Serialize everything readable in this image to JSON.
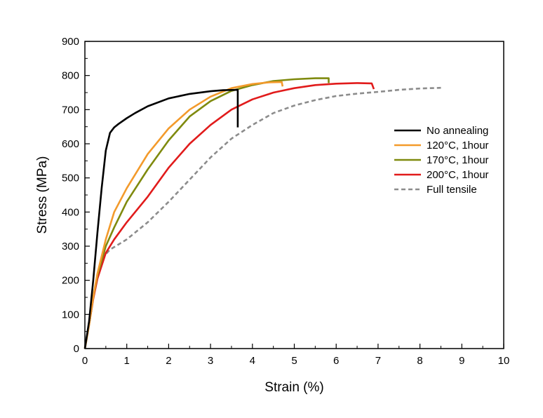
{
  "chart_data": {
    "type": "line",
    "title": "",
    "xlabel": "Strain (%)",
    "ylabel": "Stress (MPa)",
    "xlim": [
      0,
      10
    ],
    "ylim": [
      0,
      900
    ],
    "x_ticks": [
      "0",
      "1",
      "2",
      "3",
      "4",
      "5",
      "6",
      "7",
      "8",
      "9",
      "10"
    ],
    "y_ticks": [
      "0",
      "100",
      "200",
      "300",
      "400",
      "500",
      "600",
      "700",
      "800",
      "900"
    ],
    "grid": false,
    "legend_position": "right",
    "series": [
      {
        "name": "No annealing",
        "color": "#000000",
        "dash": "solid",
        "points": [
          [
            0,
            0
          ],
          [
            0.1,
            80
          ],
          [
            0.2,
            200
          ],
          [
            0.3,
            340
          ],
          [
            0.4,
            470
          ],
          [
            0.5,
            580
          ],
          [
            0.6,
            632
          ],
          [
            0.7,
            648
          ],
          [
            0.8,
            658
          ],
          [
            1.0,
            675
          ],
          [
            1.2,
            690
          ],
          [
            1.5,
            710
          ],
          [
            2.0,
            733
          ],
          [
            2.5,
            746
          ],
          [
            3.0,
            754
          ],
          [
            3.3,
            757
          ],
          [
            3.65,
            758
          ],
          [
            3.65,
            648
          ]
        ]
      },
      {
        "name": "120°C, 1hour",
        "color": "#F39A2B",
        "dash": "solid",
        "points": [
          [
            0,
            0
          ],
          [
            0.1,
            70
          ],
          [
            0.2,
            150
          ],
          [
            0.3,
            220
          ],
          [
            0.5,
            320
          ],
          [
            0.7,
            400
          ],
          [
            1.0,
            470
          ],
          [
            1.5,
            570
          ],
          [
            2.0,
            645
          ],
          [
            2.5,
            700
          ],
          [
            3.0,
            738
          ],
          [
            3.5,
            763
          ],
          [
            4.0,
            775
          ],
          [
            4.4,
            780
          ],
          [
            4.7,
            781
          ],
          [
            4.72,
            768
          ]
        ]
      },
      {
        "name": "170°C, 1hour",
        "color": "#7F8A0E",
        "dash": "solid",
        "points": [
          [
            0,
            0
          ],
          [
            0.1,
            70
          ],
          [
            0.2,
            150
          ],
          [
            0.3,
            215
          ],
          [
            0.5,
            300
          ],
          [
            0.7,
            355
          ],
          [
            1.0,
            430
          ],
          [
            1.5,
            525
          ],
          [
            2.0,
            610
          ],
          [
            2.5,
            680
          ],
          [
            3.0,
            725
          ],
          [
            3.5,
            755
          ],
          [
            4.0,
            772
          ],
          [
            4.5,
            784
          ],
          [
            5.0,
            789
          ],
          [
            5.5,
            792
          ],
          [
            5.82,
            792
          ],
          [
            5.82,
            778
          ]
        ]
      },
      {
        "name": "200°C, 1hour",
        "color": "#E11B1B",
        "dash": "solid",
        "points": [
          [
            0,
            0
          ],
          [
            0.1,
            70
          ],
          [
            0.2,
            145
          ],
          [
            0.3,
            205
          ],
          [
            0.5,
            280
          ],
          [
            0.7,
            320
          ],
          [
            1.0,
            370
          ],
          [
            1.5,
            445
          ],
          [
            2.0,
            530
          ],
          [
            2.5,
            600
          ],
          [
            3.0,
            655
          ],
          [
            3.5,
            700
          ],
          [
            4.0,
            730
          ],
          [
            4.5,
            750
          ],
          [
            5.0,
            763
          ],
          [
            5.5,
            772
          ],
          [
            6.0,
            776
          ],
          [
            6.5,
            778
          ],
          [
            6.85,
            777
          ],
          [
            6.9,
            760
          ]
        ]
      },
      {
        "name": "Full tensile",
        "color": "#8C8C8C",
        "dash": "dashed",
        "points": [
          [
            0,
            0
          ],
          [
            0.1,
            70
          ],
          [
            0.2,
            150
          ],
          [
            0.3,
            215
          ],
          [
            0.45,
            270
          ],
          [
            0.6,
            290
          ],
          [
            0.8,
            305
          ],
          [
            1.0,
            320
          ],
          [
            1.5,
            370
          ],
          [
            2.0,
            430
          ],
          [
            2.5,
            495
          ],
          [
            3.0,
            560
          ],
          [
            3.5,
            615
          ],
          [
            4.0,
            655
          ],
          [
            4.5,
            690
          ],
          [
            5.0,
            712
          ],
          [
            5.5,
            728
          ],
          [
            6.0,
            740
          ],
          [
            6.5,
            747
          ],
          [
            7.0,
            752
          ],
          [
            7.5,
            758
          ],
          [
            8.0,
            762
          ],
          [
            8.5,
            764
          ]
        ]
      }
    ]
  }
}
